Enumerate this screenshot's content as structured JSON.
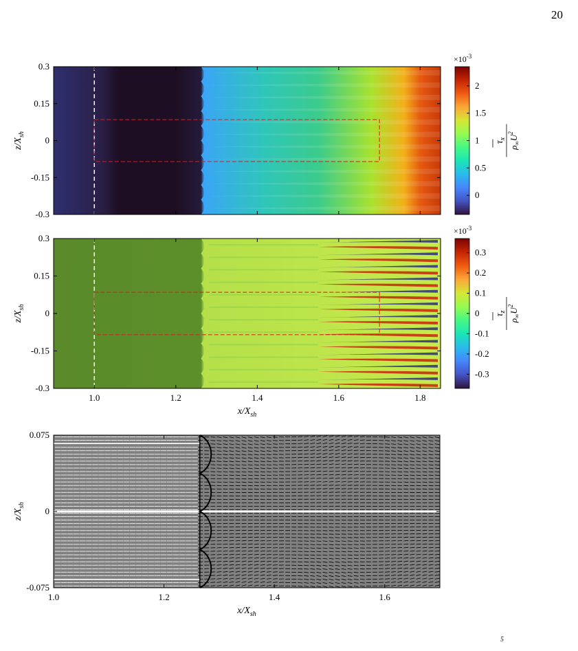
{
  "page_number": "20",
  "bottom_fragment": "5",
  "chart_data": [
    {
      "type": "heatmap",
      "panel": "a",
      "xlabel": "",
      "ylabel": "z/X_sh",
      "ylabel_main": "z/X",
      "ylabel_sub": "sh",
      "xlim": [
        0.9,
        1.85
      ],
      "ylim": [
        -0.3,
        0.3
      ],
      "yticks": [
        "0.3",
        "0.15",
        "0",
        "-0.15",
        "-0.3"
      ],
      "ytick_values": [
        0.3,
        0.15,
        0,
        -0.15,
        -0.3
      ],
      "colorscale": "turbo",
      "colorbar": {
        "ticks": [
          "2",
          "1.5",
          "1",
          "0.5",
          "0"
        ],
        "tick_values": [
          2,
          1.5,
          1,
          0.5,
          0
        ],
        "range": [
          -0.35,
          2.35
        ],
        "exponent": "×10",
        "exponent_power": "-3",
        "numerator": "τ̄_x",
        "numerator_symbol": "τ",
        "numerator_sub": "x",
        "denominator": "ρ∞U∞²",
        "denominator_parts": [
          "ρ",
          "∞",
          "U",
          "2",
          "∞"
        ]
      },
      "vertical_reference_line": 1.0,
      "roi_box": {
        "x": [
          1.0,
          1.7
        ],
        "z": [
          -0.085,
          0.085
        ]
      },
      "shock_front_x": 1.265,
      "color_legend": {
        "upstream": "#2e2f6f",
        "bubble": "#1e0e23",
        "front": "#3aa6f5",
        "mid": "#3bcb8c",
        "far": "#c83a08"
      }
    },
    {
      "type": "heatmap",
      "panel": "b",
      "xlabel": "x/X_sh",
      "xlabel_main": "x/X",
      "xlabel_sub": "sh",
      "ylabel": "z/X_sh",
      "ylabel_main": "z/X",
      "ylabel_sub": "sh",
      "xlim": [
        0.9,
        1.85
      ],
      "ylim": [
        -0.3,
        0.3
      ],
      "xticks": [
        "1.0",
        "1.2",
        "1.4",
        "1.6",
        "1.8"
      ],
      "xtick_values": [
        1.0,
        1.2,
        1.4,
        1.6,
        1.8
      ],
      "yticks": [
        "0.3",
        "0.15",
        "0",
        "-0.15",
        "-0.3"
      ],
      "ytick_values": [
        0.3,
        0.15,
        0,
        -0.15,
        -0.3
      ],
      "colorscale": "turbo",
      "colorbar": {
        "ticks": [
          "0.3",
          "0.2",
          "0.1",
          "0",
          "-0.1",
          "-0.2",
          "-0.3"
        ],
        "tick_values": [
          0.3,
          0.2,
          0.1,
          0,
          -0.1,
          -0.2,
          -0.3
        ],
        "range": [
          -0.37,
          0.37
        ],
        "exponent": "×10",
        "exponent_power": "-3",
        "numerator": "τ̄_z",
        "numerator_symbol": "τ",
        "numerator_sub": "z",
        "denominator": "ρ∞U∞²",
        "denominator_parts": [
          "ρ",
          "∞",
          "U",
          "2",
          "∞"
        ]
      },
      "vertical_reference_line": 1.0,
      "roi_box": {
        "x": [
          1.0,
          1.7
        ],
        "z": [
          -0.085,
          0.085
        ]
      },
      "shock_front_x": 1.265,
      "color_legend": {
        "upstream": "#5a8a2a",
        "downstream": "#b5e04a",
        "positive_streak": "#c8230a",
        "negative_streak": "#2a2f7a"
      }
    },
    {
      "type": "vector_field",
      "panel": "c",
      "xlabel": "x/X_sh",
      "xlabel_main": "x/X",
      "xlabel_sub": "sh",
      "ylabel": "z/X_sh",
      "ylabel_main": "z/X",
      "ylabel_sub": "sh",
      "xlim": [
        1.0,
        1.7
      ],
      "ylim": [
        -0.075,
        0.075
      ],
      "xticks": [
        "1.0",
        "1.2",
        "1.4",
        "1.6"
      ],
      "xtick_values": [
        1.0,
        1.2,
        1.4,
        1.6
      ],
      "yticks": [
        "0.075",
        "0",
        "-0.075"
      ],
      "ytick_values": [
        0.075,
        0,
        -0.075
      ],
      "background": "#808080",
      "arrow_colors": {
        "upstream": "#ffffff",
        "downstream": "#000000"
      },
      "shock_front_x": 1.265
    }
  ]
}
